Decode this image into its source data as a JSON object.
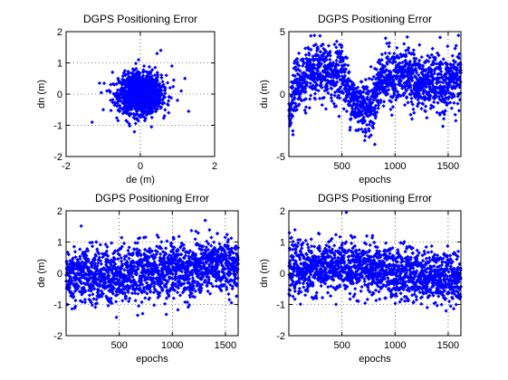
{
  "chart_data": [
    {
      "type": "scatter",
      "title": "DGPS Positioning Error",
      "xlabel": "de (m)",
      "ylabel": "dn (m)",
      "xlim": [
        -2,
        2
      ],
      "ylim": [
        -2,
        2
      ],
      "xticks": [
        -2,
        0,
        2
      ],
      "yticks": [
        -2,
        -1,
        0,
        1,
        2
      ],
      "grid": true,
      "marker_color": "#0000ff",
      "points": [
        [
          -0.9,
          0.1
        ],
        [
          -0.8,
          -0.2
        ],
        [
          -0.7,
          0.3
        ],
        [
          -0.6,
          0.5
        ],
        [
          -0.55,
          -0.45
        ],
        [
          -0.5,
          0.2
        ],
        [
          -0.45,
          -0.1
        ],
        [
          -0.4,
          0.6
        ],
        [
          -0.35,
          -0.6
        ],
        [
          -0.3,
          0.35
        ],
        [
          -0.28,
          -0.3
        ],
        [
          -0.25,
          0.1
        ],
        [
          -0.2,
          0.8
        ],
        [
          -0.18,
          -0.75
        ],
        [
          -0.15,
          0.45
        ],
        [
          -0.12,
          -0.2
        ],
        [
          -0.1,
          0.05
        ],
        [
          -0.08,
          0.25
        ],
        [
          -0.05,
          -0.5
        ],
        [
          -0.02,
          0.65
        ],
        [
          0.0,
          0.0
        ],
        [
          0.02,
          -0.3
        ],
        [
          0.05,
          0.4
        ],
        [
          0.08,
          -0.05
        ],
        [
          0.1,
          0.9
        ],
        [
          0.12,
          -0.85
        ],
        [
          0.15,
          0.2
        ],
        [
          0.18,
          -0.4
        ],
        [
          0.2,
          0.55
        ],
        [
          0.22,
          0.1
        ],
        [
          0.25,
          -0.15
        ],
        [
          0.28,
          0.7
        ],
        [
          0.3,
          -0.6
        ],
        [
          0.35,
          0.3
        ],
        [
          0.4,
          -0.25
        ],
        [
          0.45,
          1.3
        ],
        [
          0.5,
          0.15
        ],
        [
          0.55,
          -0.45
        ],
        [
          0.6,
          0.4
        ],
        [
          0.65,
          -0.1
        ],
        [
          0.7,
          0.6
        ],
        [
          0.75,
          -0.35
        ],
        [
          0.8,
          0.2
        ],
        [
          0.9,
          0.45
        ],
        [
          1.0,
          -0.2
        ],
        [
          1.1,
          0.1
        ],
        [
          1.2,
          0.5
        ],
        [
          -1.0,
          -0.5
        ],
        [
          -1.1,
          0.35
        ],
        [
          -1.3,
          -0.9
        ],
        [
          0.3,
          -1.05
        ],
        [
          -0.05,
          1.1
        ],
        [
          0.55,
          1.4
        ],
        [
          -0.6,
          -0.85
        ],
        [
          0.85,
          0.9
        ],
        [
          0.4,
          0.85
        ],
        [
          -0.3,
          -0.95
        ],
        [
          0.65,
          -0.7
        ],
        [
          -0.75,
          0.7
        ],
        [
          1.3,
          -0.55
        ]
      ]
    },
    {
      "type": "scatter",
      "title": "DGPS Positioning Error",
      "xlabel": "epochs",
      "ylabel": "du (m)",
      "xlim": [
        0,
        1620
      ],
      "ylim": [
        -5,
        5
      ],
      "xticks": [
        500,
        1000,
        1500
      ],
      "yticks": [
        -5,
        0,
        5
      ],
      "grid": true,
      "marker_color": "#0000ff",
      "trend": [
        [
          0,
          -1.5
        ],
        [
          50,
          0.5
        ],
        [
          100,
          1.0
        ],
        [
          200,
          1.5
        ],
        [
          300,
          1.8
        ],
        [
          400,
          1.5
        ],
        [
          500,
          2.0
        ],
        [
          550,
          0.5
        ],
        [
          600,
          -0.5
        ],
        [
          650,
          -1.0
        ],
        [
          700,
          -0.8
        ],
        [
          750,
          -1.2
        ],
        [
          800,
          -0.6
        ],
        [
          850,
          1.0
        ],
        [
          900,
          1.5
        ],
        [
          1000,
          1.2
        ],
        [
          1100,
          1.8
        ],
        [
          1200,
          1.0
        ],
        [
          1300,
          0.8
        ],
        [
          1400,
          1.0
        ],
        [
          1450,
          0.2
        ],
        [
          1500,
          0.8
        ],
        [
          1550,
          1.2
        ],
        [
          1620,
          1.0
        ]
      ],
      "spread": 1.1
    },
    {
      "type": "scatter",
      "title": "DGPS Positioning Error",
      "xlabel": "epochs",
      "ylabel": "de (m)",
      "xlim": [
        0,
        1620
      ],
      "ylim": [
        -2,
        2
      ],
      "xticks": [
        500,
        1000,
        1500
      ],
      "yticks": [
        -2,
        -1,
        0,
        1,
        2
      ],
      "grid": true,
      "marker_color": "#0000ff",
      "trend": [
        [
          0,
          -0.1
        ],
        [
          200,
          -0.1
        ],
        [
          400,
          -0.05
        ],
        [
          600,
          0.0
        ],
        [
          800,
          0.05
        ],
        [
          1000,
          0.1
        ],
        [
          1200,
          0.15
        ],
        [
          1400,
          0.25
        ],
        [
          1620,
          0.3
        ]
      ],
      "spread": 0.45
    },
    {
      "type": "scatter",
      "title": "DGPS Positioning Error",
      "xlabel": "epochs",
      "ylabel": "dn (m)",
      "xlim": [
        0,
        1620
      ],
      "ylim": [
        -2,
        2
      ],
      "xticks": [
        500,
        1000,
        1500
      ],
      "yticks": [
        -2,
        -1,
        0,
        1,
        2
      ],
      "grid": true,
      "marker_color": "#0000ff",
      "trend": [
        [
          0,
          0.1
        ],
        [
          200,
          0.15
        ],
        [
          400,
          0.2
        ],
        [
          600,
          0.25
        ],
        [
          800,
          0.1
        ],
        [
          1000,
          0.0
        ],
        [
          1200,
          -0.05
        ],
        [
          1400,
          -0.1
        ],
        [
          1620,
          -0.15
        ]
      ],
      "spread": 0.4
    }
  ]
}
